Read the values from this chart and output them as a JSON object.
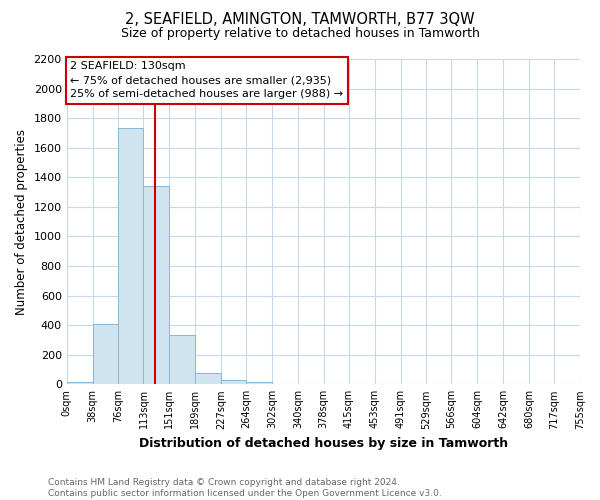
{
  "title": "2, SEAFIELD, AMINGTON, TAMWORTH, B77 3QW",
  "subtitle": "Size of property relative to detached houses in Tamworth",
  "xlabel": "Distribution of detached houses by size in Tamworth",
  "ylabel": "Number of detached properties",
  "bar_color": "#d0e4f0",
  "bar_edge_color": "#88b8d8",
  "grid_color": "#c8d8ec",
  "bins": [
    0,
    38,
    76,
    113,
    151,
    189,
    227,
    264,
    302,
    340,
    378,
    415,
    453,
    491,
    529,
    566,
    604,
    642,
    680,
    717,
    755
  ],
  "counts": [
    15,
    405,
    1735,
    1340,
    335,
    75,
    30,
    15,
    0,
    0,
    0,
    0,
    0,
    0,
    0,
    0,
    0,
    0,
    0,
    0
  ],
  "tick_labels": [
    "0sqm",
    "38sqm",
    "76sqm",
    "113sqm",
    "151sqm",
    "189sqm",
    "227sqm",
    "264sqm",
    "302sqm",
    "340sqm",
    "378sqm",
    "415sqm",
    "453sqm",
    "491sqm",
    "529sqm",
    "566sqm",
    "604sqm",
    "642sqm",
    "680sqm",
    "717sqm",
    "755sqm"
  ],
  "property_size": 130,
  "annotation_line1": "2 SEAFIELD: 130sqm",
  "annotation_line2": "← 75% of detached houses are smaller (2,935)",
  "annotation_line3": "25% of semi-detached houses are larger (988) →",
  "vline_color": "#cc0000",
  "annotation_box_edge": "#cc0000",
  "ylim": [
    0,
    2200
  ],
  "yticks": [
    0,
    200,
    400,
    600,
    800,
    1000,
    1200,
    1400,
    1600,
    1800,
    2000,
    2200
  ],
  "footer_text": "Contains HM Land Registry data © Crown copyright and database right 2024.\nContains public sector information licensed under the Open Government Licence v3.0.",
  "bg_color": "#ffffff",
  "plot_bg_color": "#ffffff"
}
